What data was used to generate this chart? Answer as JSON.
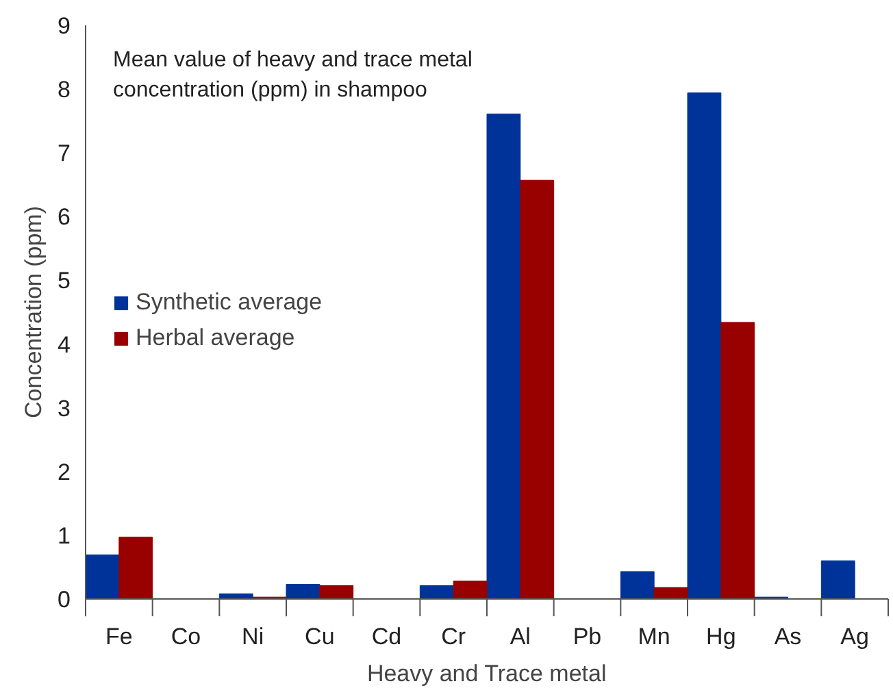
{
  "chart_data": {
    "type": "bar",
    "title": "Mean value of heavy and trace metal\nconcentration (ppm) in shampoo",
    "xlabel": "Heavy and Trace metal",
    "ylabel": "Concentration (ppm)",
    "categories": [
      "Fe",
      "Co",
      "Ni",
      "Cu",
      "Cd",
      "Cr",
      "Al",
      "Pb",
      "Mn",
      "Hg",
      "As",
      "Ag"
    ],
    "series": [
      {
        "name": "Synthetic average",
        "color": "#003399",
        "values": [
          0.69,
          0,
          0.08,
          0.23,
          0,
          0.21,
          7.61,
          0,
          0.43,
          7.94,
          0.03,
          0.6
        ]
      },
      {
        "name": "Herbal average",
        "color": "#990000",
        "values": [
          0.97,
          0,
          0.03,
          0.21,
          0,
          0.28,
          6.57,
          0,
          0.18,
          4.34,
          0,
          0
        ]
      }
    ],
    "ylim": [
      0,
      9
    ],
    "yticks": [
      0,
      1,
      2,
      3,
      4,
      5,
      6,
      7,
      8,
      9
    ],
    "grid": false,
    "legend": "left"
  }
}
